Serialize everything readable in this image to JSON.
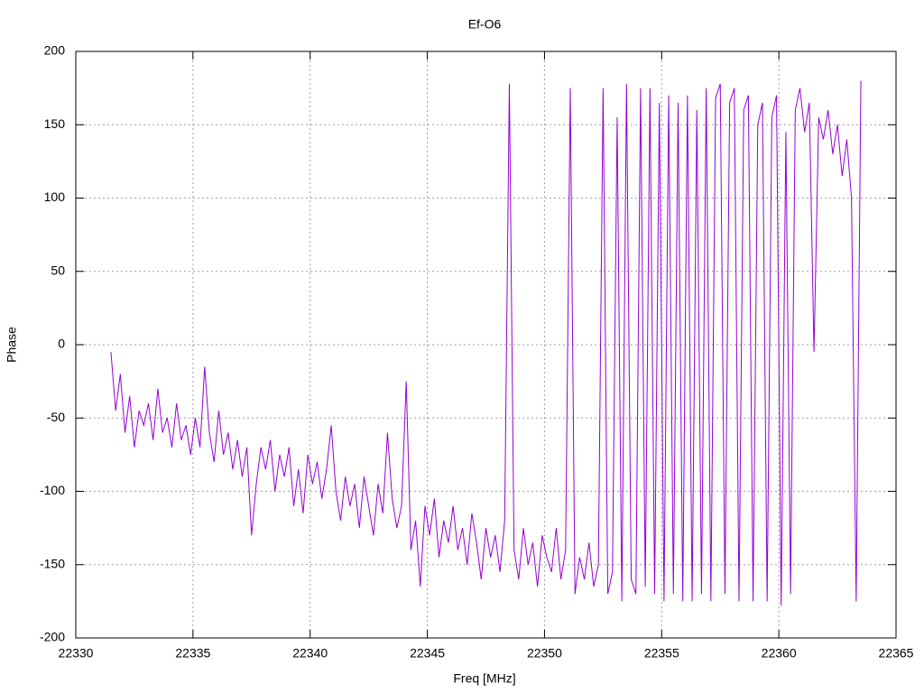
{
  "chart_data": {
    "type": "line",
    "title": "Ef-O6",
    "x_label": "Freq [MHz]",
    "y_label": "Phase",
    "x": [
      22331.5,
      22331.7,
      22331.9,
      22332.1,
      22332.3,
      22332.5,
      22332.7,
      22332.9,
      22333.1,
      22333.3,
      22333.5,
      22333.7,
      22333.9,
      22334.1,
      22334.3,
      22334.5,
      22334.7,
      22334.9,
      22335.1,
      22335.3,
      22335.5,
      22335.7,
      22335.9,
      22336.1,
      22336.3,
      22336.5,
      22336.7,
      22336.9,
      22337.1,
      22337.3,
      22337.5,
      22337.7,
      22337.9,
      22338.1,
      22338.3,
      22338.5,
      22338.7,
      22338.9,
      22339.1,
      22339.3,
      22339.5,
      22339.7,
      22339.9,
      22340.1,
      22340.3,
      22340.5,
      22340.7,
      22340.9,
      22341.1,
      22341.3,
      22341.5,
      22341.7,
      22341.9,
      22342.1,
      22342.3,
      22342.5,
      22342.7,
      22342.9,
      22343.1,
      22343.3,
      22343.5,
      22343.7,
      22343.9,
      22344.1,
      22344.3,
      22344.5,
      22344.7,
      22344.9,
      22345.1,
      22345.3,
      22345.5,
      22345.7,
      22345.9,
      22346.1,
      22346.3,
      22346.5,
      22346.7,
      22346.9,
      22347.1,
      22347.3,
      22347.5,
      22347.7,
      22347.9,
      22348.1,
      22348.3,
      22348.5,
      22348.7,
      22348.9,
      22349.1,
      22349.3,
      22349.5,
      22349.7,
      22349.9,
      22350.1,
      22350.3,
      22350.5,
      22350.7,
      22350.9,
      22351.1,
      22351.3,
      22351.5,
      22351.7,
      22351.9,
      22352.1,
      22352.3,
      22352.5,
      22352.7,
      22352.9,
      22353.1,
      22353.3,
      22353.5,
      22353.7,
      22353.9,
      22354.1,
      22354.3,
      22354.5,
      22354.7,
      22354.9,
      22355.1,
      22355.3,
      22355.5,
      22355.7,
      22355.9,
      22356.1,
      22356.3,
      22356.5,
      22356.7,
      22356.9,
      22357.1,
      22357.3,
      22357.5,
      22357.7,
      22357.9,
      22358.1,
      22358.3,
      22358.5,
      22358.7,
      22358.9,
      22359.1,
      22359.3,
      22359.5,
      22359.7,
      22359.9,
      22360.1,
      22360.3,
      22360.5,
      22360.7,
      22360.9,
      22361.1,
      22361.3,
      22361.5,
      22361.7,
      22361.9,
      22362.1,
      22362.3,
      22362.5,
      22362.7,
      22362.9,
      22363.1,
      22363.3,
      22363.5
    ],
    "series": [
      {
        "color": "#9400d3",
        "values": [
          -5,
          -45,
          -20,
          -60,
          -35,
          -70,
          -45,
          -55,
          -40,
          -65,
          -30,
          -60,
          -50,
          -70,
          -40,
          -65,
          -55,
          -75,
          -50,
          -70,
          -15,
          -60,
          -80,
          -45,
          -75,
          -60,
          -85,
          -65,
          -90,
          -70,
          -130,
          -95,
          -70,
          -85,
          -65,
          -100,
          -75,
          -90,
          -70,
          -110,
          -85,
          -115,
          -75,
          -95,
          -80,
          -105,
          -85,
          -55,
          -100,
          -120,
          -90,
          -110,
          -95,
          -125,
          -90,
          -110,
          -130,
          -95,
          -115,
          -60,
          -105,
          -125,
          -110,
          -25,
          -140,
          -120,
          -165,
          -110,
          -130,
          -105,
          -145,
          -120,
          -135,
          -110,
          -140,
          -125,
          -150,
          -115,
          -135,
          -160,
          -125,
          -145,
          -130,
          -155,
          -120,
          178,
          -140,
          -160,
          -125,
          -150,
          -135,
          -165,
          -130,
          -145,
          -155,
          -125,
          -160,
          -140,
          175,
          -170,
          -145,
          -160,
          -135,
          -165,
          -150,
          175,
          -170,
          -155,
          155,
          -175,
          178,
          -160,
          -170,
          175,
          -165,
          175,
          -170,
          165,
          -175,
          170,
          -170,
          165,
          -175,
          170,
          -175,
          160,
          -170,
          175,
          -175,
          168,
          178,
          -170,
          165,
          175,
          -175,
          160,
          170,
          -175,
          150,
          165,
          -175,
          155,
          170,
          -178,
          145,
          -170,
          160,
          175,
          145,
          165,
          -5,
          155,
          140,
          160,
          130,
          150,
          115,
          140,
          100,
          -175,
          180
        ]
      }
    ],
    "xlim": [
      22330,
      22365
    ],
    "xticks": [
      22330,
      22335,
      22340,
      22345,
      22350,
      22355,
      22360,
      22365
    ],
    "ylim": [
      -200,
      200
    ],
    "yticks": [
      -200,
      -150,
      -100,
      -50,
      0,
      50,
      100,
      150,
      200
    ],
    "grid": true
  }
}
